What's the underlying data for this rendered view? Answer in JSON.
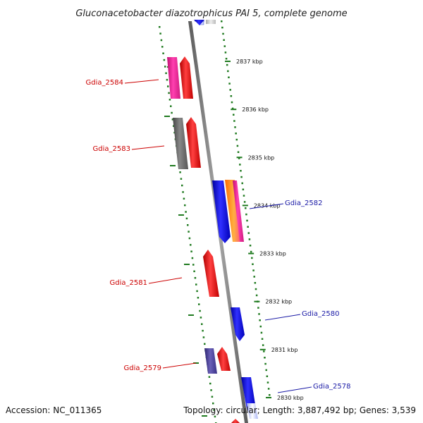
{
  "title": "Gluconacetobacter diazotrophicus PAI 5, complete genome",
  "footer": {
    "accession": "Accession: NC_011365",
    "summary": "Topology: circular; Length: 3,887,492 bp; Genes: 3,539"
  },
  "colors": {
    "backbone": "#808080",
    "dots": "#1f7a1f",
    "forward_label": "#cc0000",
    "reverse_label": "#1a1aa6",
    "red": "#ff1a1a",
    "blue": "#1010ee",
    "magenta": "#ff2a9a",
    "gray": "#6a6a6a",
    "purple": "#4a4098",
    "orange": "#ff8a20",
    "light_blue": "#c8cff8",
    "light_gray": "#c8c8c8"
  },
  "scale_ticks": [
    {
      "label": "2837 kbp",
      "kbp": 2837
    },
    {
      "label": "2836 kbp",
      "kbp": 2836
    },
    {
      "label": "2835 kbp",
      "kbp": 2835
    },
    {
      "label": "2834 kbp",
      "kbp": 2834
    },
    {
      "label": "2833 kbp",
      "kbp": 2833
    },
    {
      "label": "2832 kbp",
      "kbp": 2832
    },
    {
      "label": "2831 kbp",
      "kbp": 2831
    },
    {
      "label": "2830 kbp",
      "kbp": 2830
    }
  ],
  "gene_labels": [
    {
      "name": "Gdia_2584",
      "strand": "forward"
    },
    {
      "name": "Gdia_2583",
      "strand": "forward"
    },
    {
      "name": "Gdia_2582",
      "strand": "reverse"
    },
    {
      "name": "Gdia_2581",
      "strand": "forward"
    },
    {
      "name": "Gdia_2580",
      "strand": "reverse"
    },
    {
      "name": "Gdia_2579",
      "strand": "forward"
    },
    {
      "name": "Gdia_2578",
      "strand": "reverse"
    }
  ]
}
